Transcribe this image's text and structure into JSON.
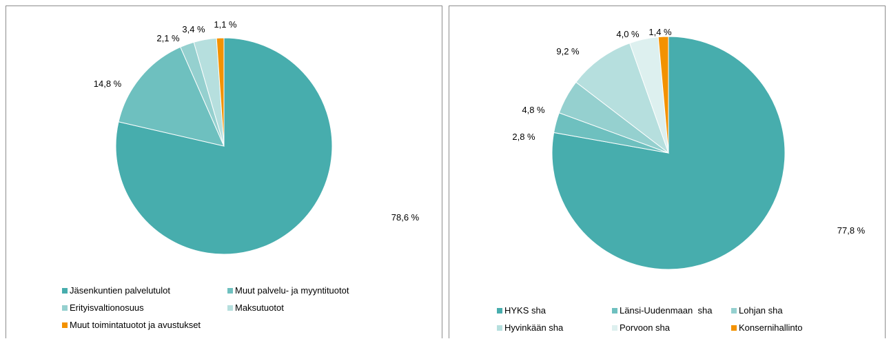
{
  "chart_data": [
    {
      "type": "pie",
      "title": "",
      "categories": [
        "Jäsenkuntien palvelutulot",
        "Muut palvelu- ja myyntituotot",
        "Erityisvaltionosuus",
        "Maksutuotot",
        "Muut toimintatuotot ja avustukset"
      ],
      "values": [
        78.6,
        14.8,
        2.1,
        3.4,
        1.1
      ],
      "labels": [
        "78,6 %",
        "14,8 %",
        "2,1 %",
        "3,4 %",
        "1,1 %"
      ],
      "colors": [
        "#47ADAD",
        "#6EC0BF",
        "#95D0CF",
        "#B6DFDE",
        "#F39200"
      ],
      "legend_placement": "bottom"
    },
    {
      "type": "pie",
      "title": "",
      "categories": [
        "HYKS sha",
        "Länsi-Uudenmaan  sha",
        "Lohjan sha",
        "Hyvinkään sha",
        "Porvoon sha",
        "Konsernihallinto"
      ],
      "values": [
        77.8,
        2.8,
        4.8,
        9.2,
        4.0,
        1.4
      ],
      "labels": [
        "77,8 %",
        "2,8 %",
        "4,8 %",
        "9,2 %",
        "4,0 %",
        "1,4 %"
      ],
      "colors": [
        "#47ADAD",
        "#6EC0BF",
        "#95D0CF",
        "#B6DFDE",
        "#DDF0EF",
        "#F39200"
      ],
      "legend_placement": "bottom"
    }
  ]
}
